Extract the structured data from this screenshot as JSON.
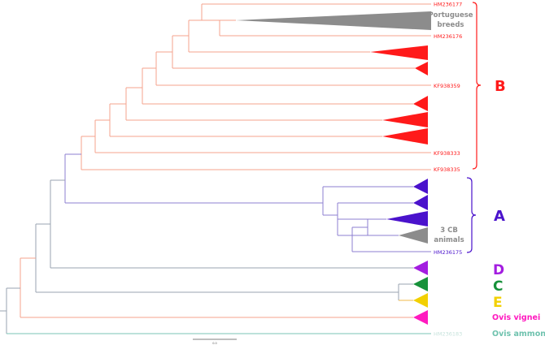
{
  "colors": {
    "branch_b": "#f4a38e",
    "branch_a": "#8e7fd0",
    "branch_root": "#9aa3b0",
    "branch_ammon": "#7ac4b4",
    "branch_e": "#f2b84a",
    "clade_b": "#ff1a1a",
    "clade_a": "#4a12cc",
    "clade_d": "#a31de0",
    "clade_c": "#17913a",
    "clade_e": "#f2d000",
    "vignei": "#ff1abf",
    "ammon": "#6fc2ae",
    "grey": "#8c8c8c",
    "scale": "#555555"
  },
  "leaf_labels": {
    "hm236177": "HM236177",
    "hm236176": "HM236176",
    "kf938359": "KF938359",
    "kf938333": "KF938333",
    "kf938335": "KF938335",
    "hm236175": "HM236175",
    "hm236183": "HM236183"
  },
  "annotations": {
    "portuguese_line1": "Portuguese",
    "portuguese_line2": "breeds",
    "cb_line1": "3 CB",
    "cb_line2": "animals"
  },
  "clades": {
    "b": "B",
    "a": "A",
    "d": "D",
    "c": "C",
    "e": "E",
    "vignei": "Ovis vignei",
    "ammon": "Ovis ammon"
  },
  "scale_label": "0.0"
}
